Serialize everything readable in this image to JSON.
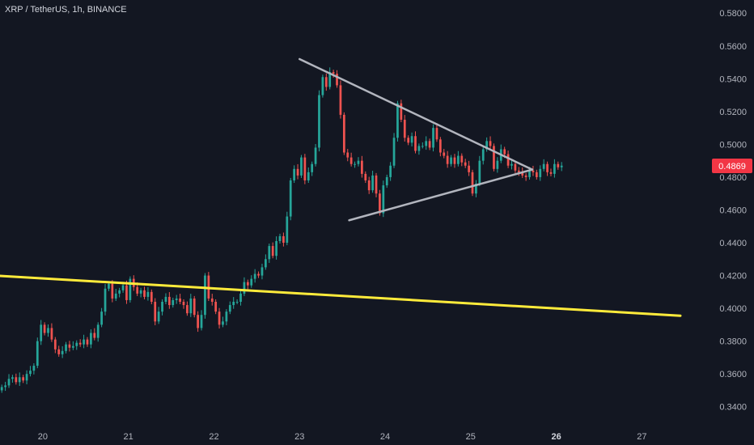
{
  "header": {
    "symbol_line": "XRP / TetherUS, 1h, BINANCE"
  },
  "colors": {
    "background": "#131722",
    "up": "#26a69a",
    "down": "#ef5350",
    "trendline": "#ffeb3b",
    "triangle": "#b2b5be",
    "price_tag": "#f23645"
  },
  "chart_data": {
    "type": "candlestick",
    "title": "XRP / TetherUS, 1h, BINANCE",
    "ylim": [
      0.33,
      0.588
    ],
    "xlim": [
      19.5,
      27.8
    ],
    "y_ticks": [
      "0.3400",
      "0.3600",
      "0.3800",
      "0.4000",
      "0.4200",
      "0.4400",
      "0.4600",
      "0.4800",
      "0.5000",
      "0.5200",
      "0.5400",
      "0.5600",
      "0.5800"
    ],
    "x_ticks": [
      {
        "label": "20",
        "day": 20,
        "bold": false
      },
      {
        "label": "21",
        "day": 21,
        "bold": false
      },
      {
        "label": "22",
        "day": 22,
        "bold": false
      },
      {
        "label": "23",
        "day": 23,
        "bold": false
      },
      {
        "label": "24",
        "day": 24,
        "bold": false
      },
      {
        "label": "25",
        "day": 25,
        "bold": false
      },
      {
        "label": "26",
        "day": 26,
        "bold": true
      },
      {
        "label": "27",
        "day": 27,
        "bold": false
      }
    ],
    "last_price": "0.4869",
    "candles_close": [
      0.352,
      0.353,
      0.357,
      0.358,
      0.355,
      0.358,
      0.356,
      0.36,
      0.362,
      0.365,
      0.38,
      0.39,
      0.385,
      0.388,
      0.381,
      0.375,
      0.372,
      0.374,
      0.378,
      0.376,
      0.377,
      0.379,
      0.378,
      0.381,
      0.378,
      0.385,
      0.382,
      0.39,
      0.398,
      0.412,
      0.415,
      0.406,
      0.409,
      0.411,
      0.414,
      0.405,
      0.418,
      0.413,
      0.409,
      0.411,
      0.407,
      0.41,
      0.404,
      0.392,
      0.398,
      0.404,
      0.407,
      0.402,
      0.405,
      0.406,
      0.404,
      0.402,
      0.397,
      0.406,
      0.396,
      0.388,
      0.396,
      0.42,
      0.406,
      0.404,
      0.398,
      0.39,
      0.392,
      0.398,
      0.402,
      0.404,
      0.404,
      0.409,
      0.416,
      0.414,
      0.418,
      0.421,
      0.42,
      0.425,
      0.43,
      0.438,
      0.432,
      0.441,
      0.444,
      0.44,
      0.456,
      0.478,
      0.485,
      0.481,
      0.492,
      0.478,
      0.483,
      0.488,
      0.498,
      0.53,
      0.541,
      0.535,
      0.544,
      0.543,
      0.536,
      0.518,
      0.495,
      0.492,
      0.488,
      0.488,
      0.49,
      0.482,
      0.478,
      0.472,
      0.481,
      0.47,
      0.458,
      0.475,
      0.48,
      0.487,
      0.504,
      0.525,
      0.515,
      0.504,
      0.501,
      0.505,
      0.496,
      0.499,
      0.499,
      0.502,
      0.498,
      0.51,
      0.503,
      0.495,
      0.493,
      0.488,
      0.492,
      0.488,
      0.493,
      0.489,
      0.487,
      0.483,
      0.47,
      0.476,
      0.49,
      0.497,
      0.502,
      0.499,
      0.485,
      0.49,
      0.497,
      0.494,
      0.487,
      0.488,
      0.484,
      0.483,
      0.481,
      0.48,
      0.484,
      0.483,
      0.48,
      0.485,
      0.488,
      0.483,
      0.482,
      0.488,
      0.486,
      0.487
    ]
  }
}
